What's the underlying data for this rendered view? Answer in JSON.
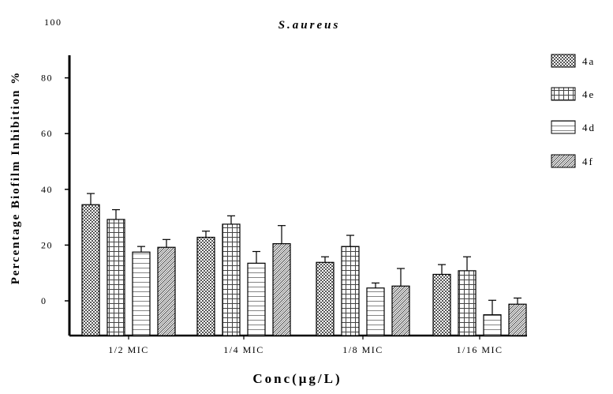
{
  "chart_data": {
    "type": "bar",
    "title": "S.aureus",
    "xlabel": "Conc(μg/L)",
    "ylabel": "Percentage Biofilm Inhibition %",
    "categories": [
      "1/2 MIC",
      "1/4 MIC",
      "1/8 MIC",
      "1/16 MIC"
    ],
    "yticks": [
      "0",
      "20",
      "40",
      "60",
      "80",
      "100"
    ],
    "ylim": [
      -10,
      100
    ],
    "series": [
      {
        "name": "4a",
        "pattern": "checker",
        "values": [
          34.5,
          22.8,
          13.8,
          9.5
        ],
        "errors": [
          4.0,
          2.2,
          2.0,
          3.5
        ]
      },
      {
        "name": "4e",
        "pattern": "grid",
        "values": [
          29.2,
          27.5,
          19.5,
          10.8
        ],
        "errors": [
          3.5,
          3.0,
          4.0,
          5.0
        ]
      },
      {
        "name": "4d",
        "pattern": "hlines",
        "values": [
          17.5,
          13.5,
          4.6,
          -5.0
        ],
        "errors": [
          2.0,
          4.2,
          1.8,
          5.2
        ]
      },
      {
        "name": "4f",
        "pattern": "zigzag",
        "values": [
          19.2,
          20.5,
          5.3,
          -1.2
        ],
        "errors": [
          2.8,
          6.5,
          6.3,
          2.2
        ]
      }
    ],
    "legend_position": "right",
    "grid": false
  }
}
